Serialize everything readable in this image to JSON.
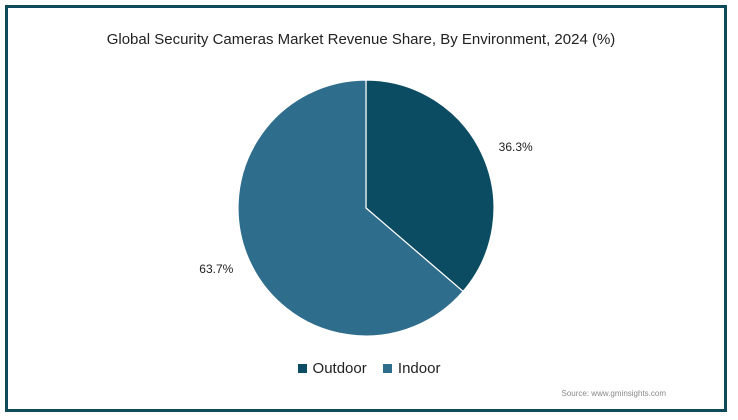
{
  "chart_data": {
    "type": "pie",
    "title": "Global Security Cameras Market Revenue Share, By Environment, 2024 (%)",
    "slices": [
      {
        "name": "Outdoor",
        "value": 36.3,
        "label": "36.3%",
        "color": "#0b4c62"
      },
      {
        "name": "Indoor",
        "value": 63.7,
        "label": "63.7%",
        "color": "#2e6d8c"
      }
    ],
    "legend_position": "bottom",
    "source": "Source: www.gminsights.com"
  }
}
